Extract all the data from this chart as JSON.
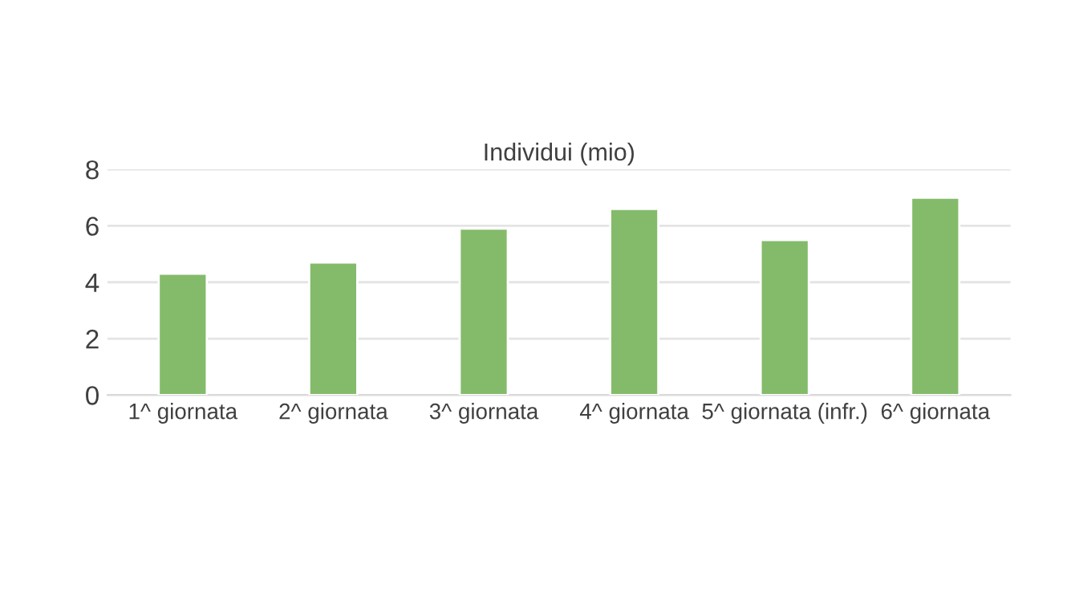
{
  "chart_data": {
    "type": "bar",
    "title": "Individui (mio)",
    "categories": [
      "1^ giornata",
      "2^ giornata",
      "3^ giornata",
      "4^ giornata",
      "5^ giornata (infr.)",
      "6^ giornata"
    ],
    "values": [
      4.3,
      4.7,
      5.9,
      6.6,
      5.5,
      7.0
    ],
    "color": "#84bb6a",
    "ylim": [
      0,
      8
    ],
    "yticks": [
      0,
      2,
      4,
      6,
      8
    ],
    "grid": "y"
  }
}
